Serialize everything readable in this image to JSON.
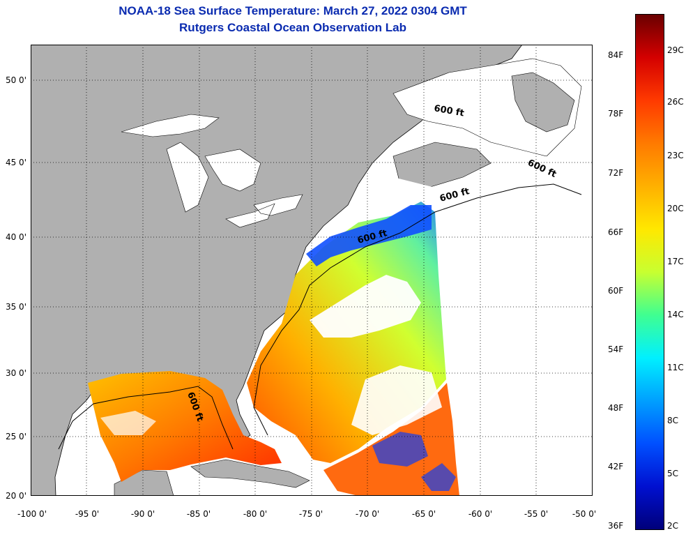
{
  "header": {
    "title": "NOAA-18 Sea Surface Temperature:  March 27, 2022 0304 GMT",
    "subtitle": "Rutgers Coastal Ocean Observation Lab"
  },
  "map": {
    "land_color": "#b0b0b0",
    "cloud_color": "#ffffff",
    "contour_label": "600 ft",
    "lat_labels": [
      "50 0'",
      "45 0'",
      "40 0'",
      "35 0'",
      "30 0'",
      "25 0'",
      "20 0'"
    ],
    "lon_labels": [
      "-100 0'",
      "-95 0'",
      "-90 0'",
      "-85 0'",
      "-80 0'",
      "-75 0'",
      "-70 0'",
      "-65 0'",
      "-60 0'",
      "-55 0'",
      "-50 0'"
    ]
  },
  "colorbar": {
    "fahrenheit_labels": [
      "84F",
      "78F",
      "72F",
      "66F",
      "60F",
      "54F",
      "48F",
      "42F",
      "36F"
    ],
    "celsius_labels": [
      "29C",
      "26C",
      "23C",
      "20C",
      "17C",
      "14C",
      "11C",
      "8C",
      "5C",
      "2C"
    ],
    "colors": [
      "#6a0000",
      "#d40000",
      "#ff3a00",
      "#ff7a00",
      "#ffb000",
      "#ffe800",
      "#c8ff30",
      "#40ff90",
      "#00f0ff",
      "#00a0ff",
      "#0050ff",
      "#0010d0",
      "#00007a"
    ]
  }
}
